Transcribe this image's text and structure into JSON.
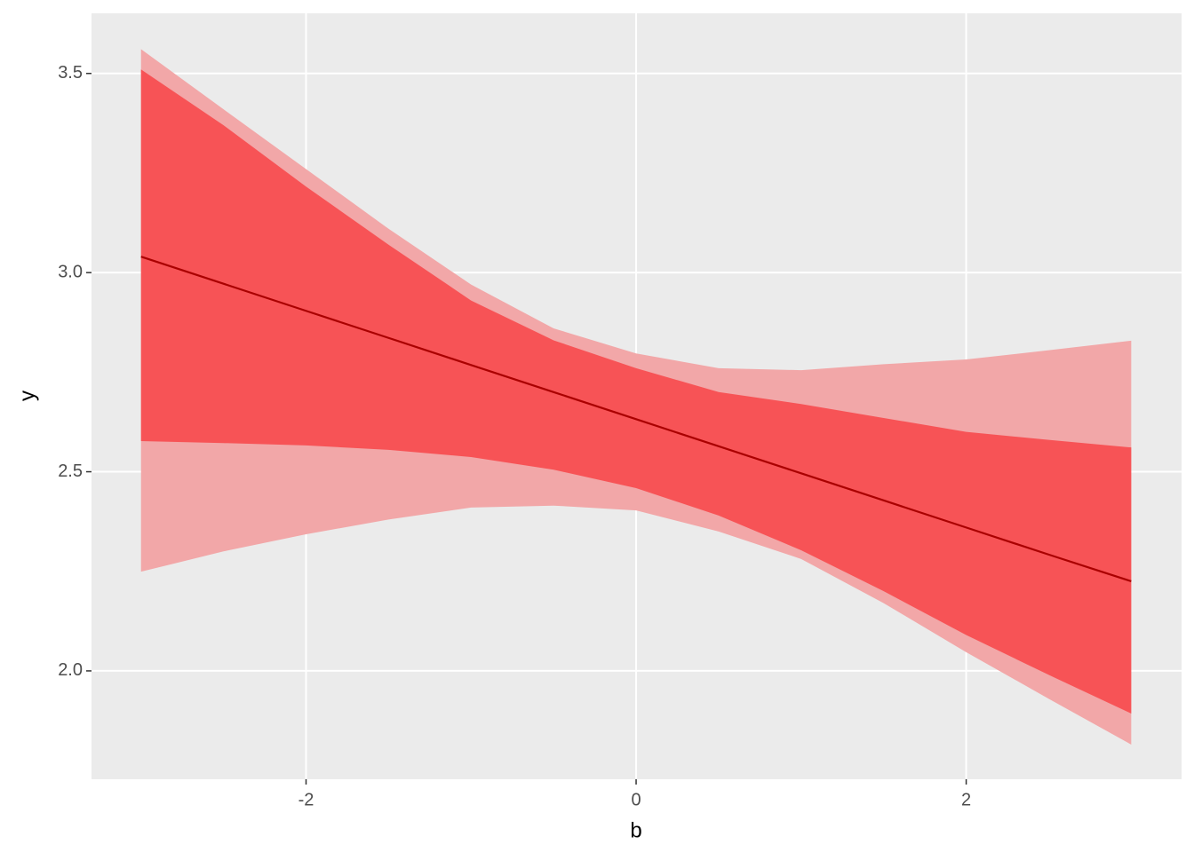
{
  "chart_data": {
    "type": "line",
    "x_label": "b",
    "y_label": "y",
    "x": [
      -3,
      -2.5,
      -2,
      -1.5,
      -1,
      -0.5,
      0,
      0.5,
      1,
      1.5,
      2,
      2.5,
      3
    ],
    "series": [
      {
        "color": "#aa0000",
        "values": [
          3.04,
          2.972,
          2.904,
          2.836,
          2.768,
          2.7,
          2.632,
          2.564,
          2.496,
          2.428,
          2.36,
          2.292,
          2.225
        ]
      }
    ],
    "bands": [
      {
        "color": "#f2a7a8",
        "upper": [
          3.561,
          3.41,
          3.26,
          3.11,
          2.97,
          2.86,
          2.797,
          2.76,
          2.755,
          2.77,
          2.782,
          2.805,
          2.829
        ],
        "lower": [
          2.249,
          2.3,
          2.343,
          2.38,
          2.41,
          2.415,
          2.403,
          2.35,
          2.281,
          2.17,
          2.047,
          1.93,
          1.815
        ]
      },
      {
        "color": "#f75356",
        "upper": [
          3.51,
          3.37,
          3.216,
          3.07,
          2.93,
          2.83,
          2.76,
          2.7,
          2.67,
          2.635,
          2.6,
          2.58,
          2.561
        ],
        "lower": [
          2.577,
          2.572,
          2.566,
          2.555,
          2.537,
          2.505,
          2.459,
          2.39,
          2.303,
          2.2,
          2.09,
          1.99,
          1.893
        ]
      }
    ],
    "xlim": [
      -3.3,
      3.305
    ],
    "ylim": [
      1.728,
      3.651
    ],
    "xticks": [
      -2,
      0,
      2
    ],
    "yticks": [
      {
        "value": 2.0,
        "label": "2.0"
      },
      2.5,
      {
        "value": 3.0,
        "label": "3.0"
      },
      3.5
    ],
    "grid": true
  }
}
